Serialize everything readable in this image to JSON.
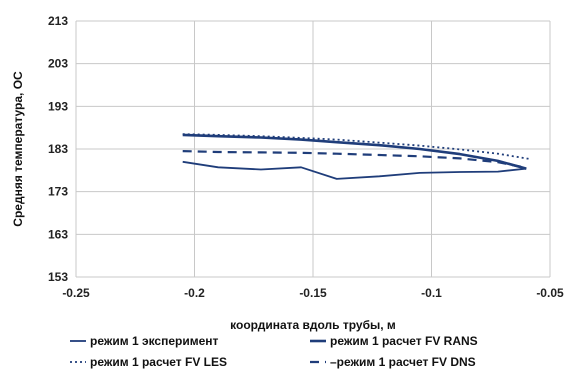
{
  "chart_data": {
    "type": "line",
    "xlabel": "координата вдоль трубы, м",
    "ylabel": "Средняя температура, ОС",
    "xlim": [
      -0.25,
      -0.05
    ],
    "ylim": [
      153,
      213
    ],
    "x_ticks": [
      "-0.25",
      "-0.2",
      "-0.15",
      "-0.1",
      "-0.05"
    ],
    "y_ticks": [
      "153",
      "163",
      "173",
      "183",
      "193",
      "203",
      "213"
    ],
    "grid": "vertical and horizontal",
    "legend_position": "bottom",
    "series": [
      {
        "name": "режим 1 эксперимент",
        "color": "#1f3d7a",
        "style": "solid-thin",
        "x": [
          -0.205,
          -0.19,
          -0.172,
          -0.155,
          -0.14,
          -0.122,
          -0.105,
          -0.088,
          -0.072,
          -0.06
        ],
        "y": [
          180.0,
          178.7,
          178.2,
          178.7,
          176.0,
          176.6,
          177.4,
          177.6,
          177.7,
          178.4
        ]
      },
      {
        "name": "режим 1 расчет FV RANS",
        "color": "#1f3d7a",
        "style": "solid-thick",
        "x": [
          -0.205,
          -0.19,
          -0.172,
          -0.155,
          -0.14,
          -0.122,
          -0.105,
          -0.088,
          -0.072,
          -0.06
        ],
        "y": [
          186.3,
          186.0,
          185.7,
          185.2,
          184.6,
          183.9,
          183.0,
          181.8,
          180.2,
          178.4
        ]
      },
      {
        "name": "режим 1 расчет FV LES",
        "color": "#1f3d7a",
        "style": "dotted",
        "x": [
          -0.205,
          -0.19,
          -0.172,
          -0.155,
          -0.14,
          -0.122,
          -0.105,
          -0.088,
          -0.072,
          -0.058
        ],
        "y": [
          186.5,
          186.3,
          186.0,
          185.6,
          185.2,
          184.5,
          183.8,
          182.9,
          181.9,
          180.6
        ]
      },
      {
        "name": "–режим 1 расчет FV DNS",
        "color": "#1f3d7a",
        "style": "dashed",
        "x": [
          -0.205,
          -0.19,
          -0.172,
          -0.155,
          -0.14,
          -0.122,
          -0.105,
          -0.088,
          -0.072,
          -0.06
        ],
        "y": [
          182.5,
          182.3,
          182.2,
          182.1,
          181.9,
          181.6,
          181.3,
          180.8,
          179.9,
          178.6
        ]
      }
    ]
  }
}
